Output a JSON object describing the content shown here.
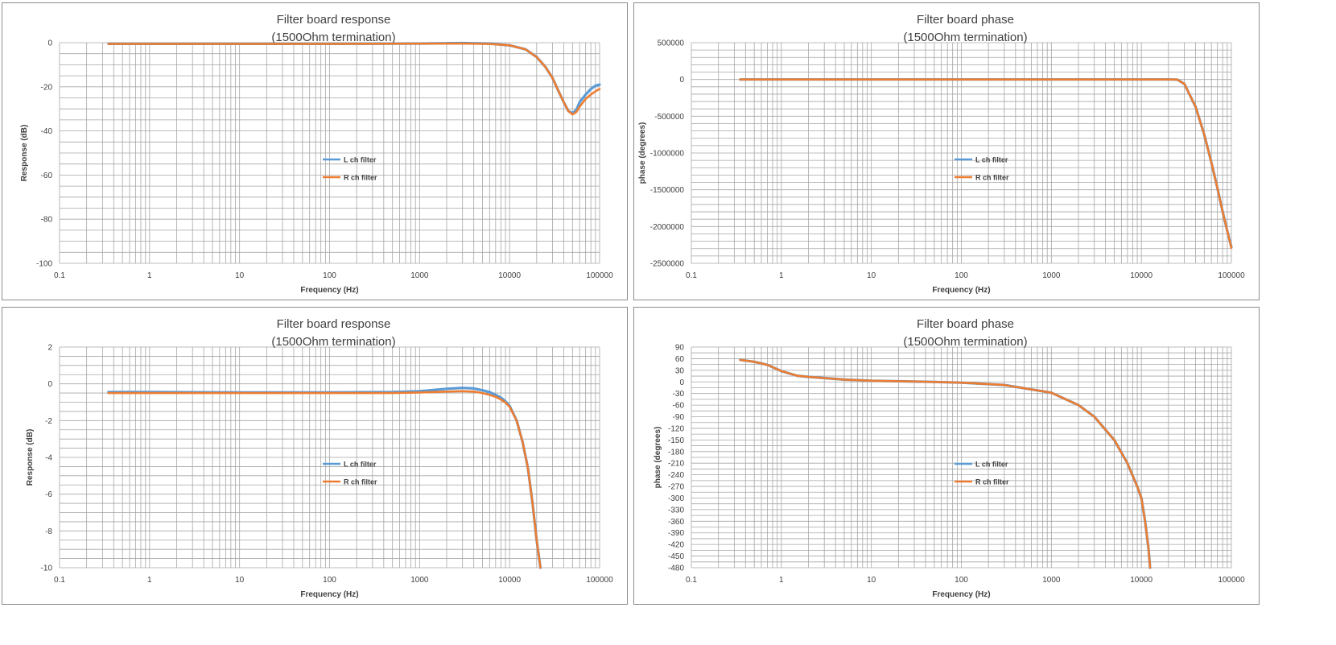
{
  "colors": {
    "l_ch": "#5b9bd5",
    "r_ch": "#ed7d31",
    "grid": "#a6a6a6",
    "text": "#404040"
  },
  "chart_data": [
    {
      "type": "line",
      "title": "Filter board response",
      "subtitle": "(1500Ohm termination)",
      "xlabel": "Frequency (Hz)",
      "ylabel": "Response  (dB)",
      "xscale": "log",
      "xlim": [
        0.1,
        100000
      ],
      "ylim": [
        -100,
        0
      ],
      "xticks": [
        0.1,
        1,
        10,
        100,
        1000,
        10000,
        100000
      ],
      "yticks": [
        0,
        -20,
        -40,
        -60,
        -80,
        -100
      ],
      "ygrid_step": 5,
      "legend_position": "center",
      "series": [
        {
          "name": "L ch filter",
          "color": "#5b9bd5",
          "x": [
            0.35,
            1,
            10,
            100,
            1000,
            3000,
            6000,
            10000,
            15000,
            20000,
            25000,
            30000,
            35000,
            40000,
            45000,
            50000,
            55000,
            60000,
            70000,
            80000,
            90000,
            100000
          ],
          "y": [
            -0.5,
            -0.5,
            -0.5,
            -0.5,
            -0.4,
            -0.2,
            -0.4,
            -1.2,
            -3,
            -6.5,
            -11,
            -16,
            -22,
            -27,
            -31,
            -32,
            -30.5,
            -27,
            -23.5,
            -21,
            -19.5,
            -19
          ]
        },
        {
          "name": "R ch filter",
          "color": "#ed7d31",
          "x": [
            0.35,
            1,
            10,
            100,
            1000,
            3000,
            6000,
            10000,
            15000,
            20000,
            25000,
            30000,
            35000,
            40000,
            45000,
            50000,
            55000,
            60000,
            70000,
            80000,
            90000,
            100000
          ],
          "y": [
            -0.5,
            -0.5,
            -0.5,
            -0.5,
            -0.45,
            -0.4,
            -0.6,
            -1.2,
            -3,
            -6.5,
            -11,
            -16,
            -22,
            -27,
            -31,
            -32.5,
            -31.5,
            -29,
            -25.5,
            -23.5,
            -22,
            -21
          ]
        }
      ]
    },
    {
      "type": "line",
      "title": "Filter board phase",
      "subtitle": "(1500Ohm termination)",
      "xlabel": "Frequency (Hz)",
      "ylabel": "phase (degrees)",
      "xscale": "log",
      "xlim": [
        0.1,
        100000
      ],
      "ylim": [
        -2500000,
        500000
      ],
      "xticks": [
        0.1,
        1,
        10,
        100,
        1000,
        10000,
        100000
      ],
      "yticks": [
        500000,
        0,
        -500000,
        -1000000,
        -1500000,
        -2000000,
        -2500000
      ],
      "ygrid_step": 100000,
      "legend_position": "center",
      "series": [
        {
          "name": "L ch filter",
          "color": "#5b9bd5",
          "x": [
            0.35,
            1,
            10,
            100,
            1000,
            10000,
            20000,
            25000,
            30000,
            40000,
            50000,
            60000,
            70000,
            80000,
            90000,
            100000
          ],
          "y": [
            0,
            0,
            0,
            0,
            0,
            0,
            0,
            -2000,
            -60000,
            -370000,
            -750000,
            -1130000,
            -1480000,
            -1800000,
            -2060000,
            -2280000
          ]
        },
        {
          "name": "R ch filter",
          "color": "#ed7d31",
          "x": [
            0.35,
            1,
            10,
            100,
            1000,
            10000,
            20000,
            25000,
            30000,
            40000,
            50000,
            60000,
            70000,
            80000,
            90000,
            100000
          ],
          "y": [
            0,
            0,
            0,
            0,
            0,
            0,
            0,
            -2000,
            -60000,
            -370000,
            -750000,
            -1130000,
            -1480000,
            -1800000,
            -2060000,
            -2290000
          ]
        }
      ]
    },
    {
      "type": "line",
      "title": "Filter board response",
      "subtitle": "(1500Ohm termination)",
      "xlabel": "Frequency (Hz)",
      "ylabel": "Response (dB)",
      "xscale": "log",
      "xlim": [
        0.1,
        100000
      ],
      "ylim": [
        -10,
        2
      ],
      "xticks": [
        0.1,
        1,
        10,
        100,
        1000,
        10000,
        100000
      ],
      "yticks": [
        2,
        0,
        -2,
        -4,
        -6,
        -8,
        -10
      ],
      "ygrid_step": 0.5,
      "legend_position": "center",
      "series": [
        {
          "name": "L ch filter",
          "color": "#5b9bd5",
          "x": [
            0.35,
            1,
            10,
            100,
            500,
            1000,
            2000,
            3000,
            4000,
            5000,
            6000,
            7000,
            8000,
            9000,
            10000,
            12000,
            14000,
            16000,
            18000,
            20000,
            22000
          ],
          "y": [
            -0.45,
            -0.45,
            -0.47,
            -0.47,
            -0.45,
            -0.4,
            -0.27,
            -0.22,
            -0.25,
            -0.35,
            -0.45,
            -0.6,
            -0.75,
            -0.95,
            -1.2,
            -2,
            -3.2,
            -4.6,
            -6.5,
            -8.5,
            -10
          ]
        },
        {
          "name": "R ch filter",
          "color": "#ed7d31",
          "x": [
            0.35,
            1,
            10,
            100,
            500,
            1000,
            2000,
            3000,
            4000,
            5000,
            6000,
            7000,
            8000,
            9000,
            10000,
            12000,
            14000,
            16000,
            18000,
            20000,
            22000
          ],
          "y": [
            -0.5,
            -0.5,
            -0.5,
            -0.5,
            -0.5,
            -0.47,
            -0.42,
            -0.4,
            -0.42,
            -0.5,
            -0.6,
            -0.7,
            -0.85,
            -1.02,
            -1.25,
            -2,
            -3.2,
            -4.6,
            -6.5,
            -8.5,
            -10
          ]
        }
      ]
    },
    {
      "type": "line",
      "title": "Filter board phase",
      "subtitle": "(1500Ohm termination)",
      "xlabel": "Frequency (Hz)",
      "ylabel": "phase (degrees)",
      "xscale": "log",
      "xlim": [
        0.1,
        100000
      ],
      "ylim": [
        -480,
        90
      ],
      "xticks": [
        0.1,
        1,
        10,
        100,
        1000,
        10000,
        100000
      ],
      "yticks": [
        90,
        60,
        30,
        0,
        -30,
        -60,
        -90,
        -120,
        -150,
        -180,
        -210,
        -240,
        -270,
        -300,
        -330,
        -360,
        -390,
        -420,
        -450,
        -480
      ],
      "ygrid_step": 15,
      "legend_position": "center",
      "series": [
        {
          "name": "L ch filter",
          "color": "#5b9bd5",
          "x": [
            0.35,
            0.5,
            0.7,
            1,
            1.5,
            2,
            5,
            10,
            50,
            100,
            300,
            1000,
            2000,
            3000,
            5000,
            7000,
            9000,
            10000,
            11000,
            12000,
            12500
          ],
          "y": [
            57,
            52,
            44,
            28,
            16,
            13,
            6,
            3,
            0,
            -2,
            -8,
            -28,
            -60,
            -90,
            -150,
            -210,
            -270,
            -300,
            -360,
            -430,
            -480
          ]
        },
        {
          "name": "R ch filter",
          "color": "#ed7d31",
          "x": [
            0.35,
            0.5,
            0.7,
            1,
            1.5,
            2,
            5,
            10,
            50,
            100,
            300,
            1000,
            2000,
            3000,
            5000,
            7000,
            9000,
            10000,
            11000,
            12000,
            12500
          ],
          "y": [
            57,
            52,
            44,
            28,
            16,
            13,
            6,
            3,
            0,
            -2,
            -8,
            -28,
            -60,
            -90,
            -150,
            -210,
            -270,
            -300,
            -360,
            -430,
            -480
          ]
        }
      ]
    }
  ]
}
